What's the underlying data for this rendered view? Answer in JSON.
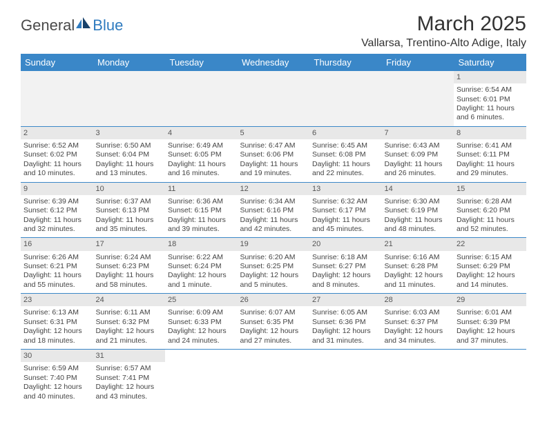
{
  "brand": {
    "part1": "General",
    "part2": "Blue"
  },
  "title": "March 2025",
  "location": "Vallarsa, Trentino-Alto Adige, Italy",
  "colors": {
    "header_bg": "#3a87c8",
    "header_text": "#ffffff",
    "daynum_bg": "#e8e8e8",
    "empty_bg": "#f2f2f2",
    "row_border": "#3a87c8",
    "logo_gray": "#4a4a4a",
    "logo_blue": "#2f7bbf"
  },
  "weekdays": [
    "Sunday",
    "Monday",
    "Tuesday",
    "Wednesday",
    "Thursday",
    "Friday",
    "Saturday"
  ],
  "weeks": [
    [
      null,
      null,
      null,
      null,
      null,
      null,
      {
        "n": "1",
        "sr": "Sunrise: 6:54 AM",
        "ss": "Sunset: 6:01 PM",
        "dl": "Daylight: 11 hours and 6 minutes."
      }
    ],
    [
      {
        "n": "2",
        "sr": "Sunrise: 6:52 AM",
        "ss": "Sunset: 6:02 PM",
        "dl": "Daylight: 11 hours and 10 minutes."
      },
      {
        "n": "3",
        "sr": "Sunrise: 6:50 AM",
        "ss": "Sunset: 6:04 PM",
        "dl": "Daylight: 11 hours and 13 minutes."
      },
      {
        "n": "4",
        "sr": "Sunrise: 6:49 AM",
        "ss": "Sunset: 6:05 PM",
        "dl": "Daylight: 11 hours and 16 minutes."
      },
      {
        "n": "5",
        "sr": "Sunrise: 6:47 AM",
        "ss": "Sunset: 6:06 PM",
        "dl": "Daylight: 11 hours and 19 minutes."
      },
      {
        "n": "6",
        "sr": "Sunrise: 6:45 AM",
        "ss": "Sunset: 6:08 PM",
        "dl": "Daylight: 11 hours and 22 minutes."
      },
      {
        "n": "7",
        "sr": "Sunrise: 6:43 AM",
        "ss": "Sunset: 6:09 PM",
        "dl": "Daylight: 11 hours and 26 minutes."
      },
      {
        "n": "8",
        "sr": "Sunrise: 6:41 AM",
        "ss": "Sunset: 6:11 PM",
        "dl": "Daylight: 11 hours and 29 minutes."
      }
    ],
    [
      {
        "n": "9",
        "sr": "Sunrise: 6:39 AM",
        "ss": "Sunset: 6:12 PM",
        "dl": "Daylight: 11 hours and 32 minutes."
      },
      {
        "n": "10",
        "sr": "Sunrise: 6:37 AM",
        "ss": "Sunset: 6:13 PM",
        "dl": "Daylight: 11 hours and 35 minutes."
      },
      {
        "n": "11",
        "sr": "Sunrise: 6:36 AM",
        "ss": "Sunset: 6:15 PM",
        "dl": "Daylight: 11 hours and 39 minutes."
      },
      {
        "n": "12",
        "sr": "Sunrise: 6:34 AM",
        "ss": "Sunset: 6:16 PM",
        "dl": "Daylight: 11 hours and 42 minutes."
      },
      {
        "n": "13",
        "sr": "Sunrise: 6:32 AM",
        "ss": "Sunset: 6:17 PM",
        "dl": "Daylight: 11 hours and 45 minutes."
      },
      {
        "n": "14",
        "sr": "Sunrise: 6:30 AM",
        "ss": "Sunset: 6:19 PM",
        "dl": "Daylight: 11 hours and 48 minutes."
      },
      {
        "n": "15",
        "sr": "Sunrise: 6:28 AM",
        "ss": "Sunset: 6:20 PM",
        "dl": "Daylight: 11 hours and 52 minutes."
      }
    ],
    [
      {
        "n": "16",
        "sr": "Sunrise: 6:26 AM",
        "ss": "Sunset: 6:21 PM",
        "dl": "Daylight: 11 hours and 55 minutes."
      },
      {
        "n": "17",
        "sr": "Sunrise: 6:24 AM",
        "ss": "Sunset: 6:23 PM",
        "dl": "Daylight: 11 hours and 58 minutes."
      },
      {
        "n": "18",
        "sr": "Sunrise: 6:22 AM",
        "ss": "Sunset: 6:24 PM",
        "dl": "Daylight: 12 hours and 1 minute."
      },
      {
        "n": "19",
        "sr": "Sunrise: 6:20 AM",
        "ss": "Sunset: 6:25 PM",
        "dl": "Daylight: 12 hours and 5 minutes."
      },
      {
        "n": "20",
        "sr": "Sunrise: 6:18 AM",
        "ss": "Sunset: 6:27 PM",
        "dl": "Daylight: 12 hours and 8 minutes."
      },
      {
        "n": "21",
        "sr": "Sunrise: 6:16 AM",
        "ss": "Sunset: 6:28 PM",
        "dl": "Daylight: 12 hours and 11 minutes."
      },
      {
        "n": "22",
        "sr": "Sunrise: 6:15 AM",
        "ss": "Sunset: 6:29 PM",
        "dl": "Daylight: 12 hours and 14 minutes."
      }
    ],
    [
      {
        "n": "23",
        "sr": "Sunrise: 6:13 AM",
        "ss": "Sunset: 6:31 PM",
        "dl": "Daylight: 12 hours and 18 minutes."
      },
      {
        "n": "24",
        "sr": "Sunrise: 6:11 AM",
        "ss": "Sunset: 6:32 PM",
        "dl": "Daylight: 12 hours and 21 minutes."
      },
      {
        "n": "25",
        "sr": "Sunrise: 6:09 AM",
        "ss": "Sunset: 6:33 PM",
        "dl": "Daylight: 12 hours and 24 minutes."
      },
      {
        "n": "26",
        "sr": "Sunrise: 6:07 AM",
        "ss": "Sunset: 6:35 PM",
        "dl": "Daylight: 12 hours and 27 minutes."
      },
      {
        "n": "27",
        "sr": "Sunrise: 6:05 AM",
        "ss": "Sunset: 6:36 PM",
        "dl": "Daylight: 12 hours and 31 minutes."
      },
      {
        "n": "28",
        "sr": "Sunrise: 6:03 AM",
        "ss": "Sunset: 6:37 PM",
        "dl": "Daylight: 12 hours and 34 minutes."
      },
      {
        "n": "29",
        "sr": "Sunrise: 6:01 AM",
        "ss": "Sunset: 6:39 PM",
        "dl": "Daylight: 12 hours and 37 minutes."
      }
    ],
    [
      {
        "n": "30",
        "sr": "Sunrise: 6:59 AM",
        "ss": "Sunset: 7:40 PM",
        "dl": "Daylight: 12 hours and 40 minutes."
      },
      {
        "n": "31",
        "sr": "Sunrise: 6:57 AM",
        "ss": "Sunset: 7:41 PM",
        "dl": "Daylight: 12 hours and 43 minutes."
      },
      null,
      null,
      null,
      null,
      null
    ]
  ]
}
